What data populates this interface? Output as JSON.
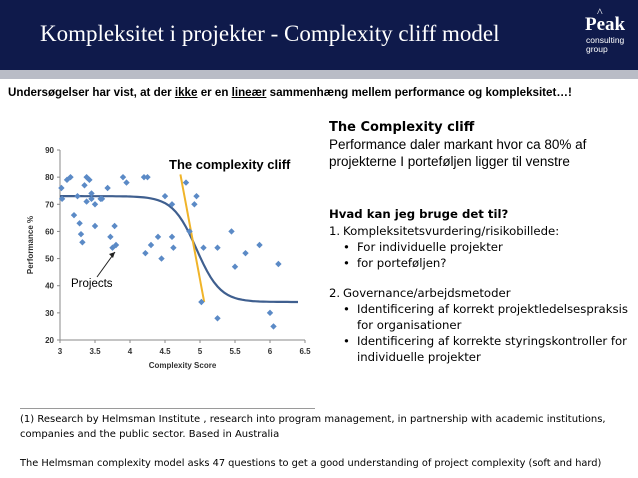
{
  "header": {
    "title": "Kompleksitet i projekter - Complexity cliff model",
    "logo": {
      "caret": "^",
      "main": "Peak",
      "sub1": "consulting",
      "sub2": "group"
    }
  },
  "subtitle": {
    "part1": "Undersøgelser har vist, at der ",
    "part2": "ikke",
    "part3": " er en ",
    "part4": "lineær",
    "part5": " sammenhæng mellem performance og kompleksitet…!"
  },
  "chart_title": "The complexity cliff",
  "projects_label": "Projects",
  "chart_data": {
    "type": "scatter",
    "xlabel": "Complexity Score",
    "ylabel": "Performance %",
    "xlim": [
      3,
      6.5
    ],
    "ylim": [
      20,
      90
    ],
    "xticks": [
      "3",
      "3.5",
      "4",
      "4.5",
      "5",
      "5.5",
      "6",
      "6.5"
    ],
    "yticks": [
      "20",
      "30",
      "40",
      "50",
      "60",
      "70",
      "80",
      "90"
    ],
    "grid": false,
    "series": [
      {
        "points": [
          [
            3.02,
            76
          ],
          [
            3.03,
            72
          ],
          [
            3.1,
            79
          ],
          [
            3.15,
            80
          ],
          [
            3.2,
            66
          ],
          [
            3.25,
            73
          ],
          [
            3.28,
            63
          ],
          [
            3.3,
            59
          ],
          [
            3.32,
            56
          ],
          [
            3.35,
            77
          ],
          [
            3.38,
            80
          ],
          [
            3.38,
            71
          ],
          [
            3.42,
            79
          ],
          [
            3.45,
            74
          ],
          [
            3.45,
            72
          ],
          [
            3.5,
            70
          ],
          [
            3.5,
            62
          ],
          [
            3.58,
            72
          ],
          [
            3.6,
            72
          ],
          [
            3.68,
            76
          ],
          [
            3.72,
            58
          ],
          [
            3.75,
            54
          ],
          [
            3.78,
            62
          ],
          [
            3.8,
            55
          ],
          [
            3.9,
            80
          ],
          [
            3.95,
            78
          ],
          [
            4.2,
            80
          ],
          [
            4.25,
            80
          ],
          [
            4.22,
            52
          ],
          [
            4.3,
            55
          ],
          [
            4.4,
            58
          ],
          [
            4.45,
            50
          ],
          [
            4.5,
            73
          ],
          [
            4.6,
            70
          ],
          [
            4.6,
            58
          ],
          [
            4.62,
            54
          ],
          [
            4.8,
            78
          ],
          [
            4.85,
            60
          ],
          [
            4.92,
            70
          ],
          [
            4.95,
            73
          ],
          [
            5.02,
            34
          ],
          [
            5.05,
            54
          ],
          [
            5.25,
            28
          ],
          [
            5.25,
            54
          ],
          [
            5.45,
            60
          ],
          [
            5.5,
            47
          ],
          [
            5.65,
            52
          ],
          [
            5.85,
            55
          ],
          [
            6,
            30
          ],
          [
            6.05,
            25
          ],
          [
            6.12,
            48
          ]
        ]
      }
    ],
    "annotations": [
      "The complexity cliff",
      "Projects"
    ]
  },
  "right": {
    "heading": "The Complexity cliff",
    "text": "Performance daler markant hvor ca 80% af projekterne I porteføljen ligger til venstre"
  },
  "questions": {
    "heading": "Hvad kan jeg bruge det til?",
    "item1": {
      "num": "1.",
      "text": "Kompleksitetsvurdering/risikobillede:"
    },
    "item1_bullets": [
      "For individuelle projekter",
      "for porteføljen?"
    ],
    "item2": {
      "num": "2.",
      "text": "Governance/arbejdsmetoder"
    },
    "item2_bullets": [
      "Identificering af korrekt projektledelsespraksis for organisationer",
      "Identificering af korrekte styringskontroller for individuelle projekter"
    ],
    "bullet_glyph": "•"
  },
  "footnote": "(1) Research by Helmsman Institute ,  research into program management, in partnership with academic institutions, companies and the public sector. Based in Australia",
  "footnote2": "The Helmsman  complexity model asks 47 questions to get a good understanding of project complexity (soft and hard)",
  "colors": {
    "header_bg": "#0f1a4b",
    "band": "#b9bcc6",
    "points": "#5b8ac6",
    "curve": "#3f5f8f",
    "cliff_line": "#f0b429"
  }
}
